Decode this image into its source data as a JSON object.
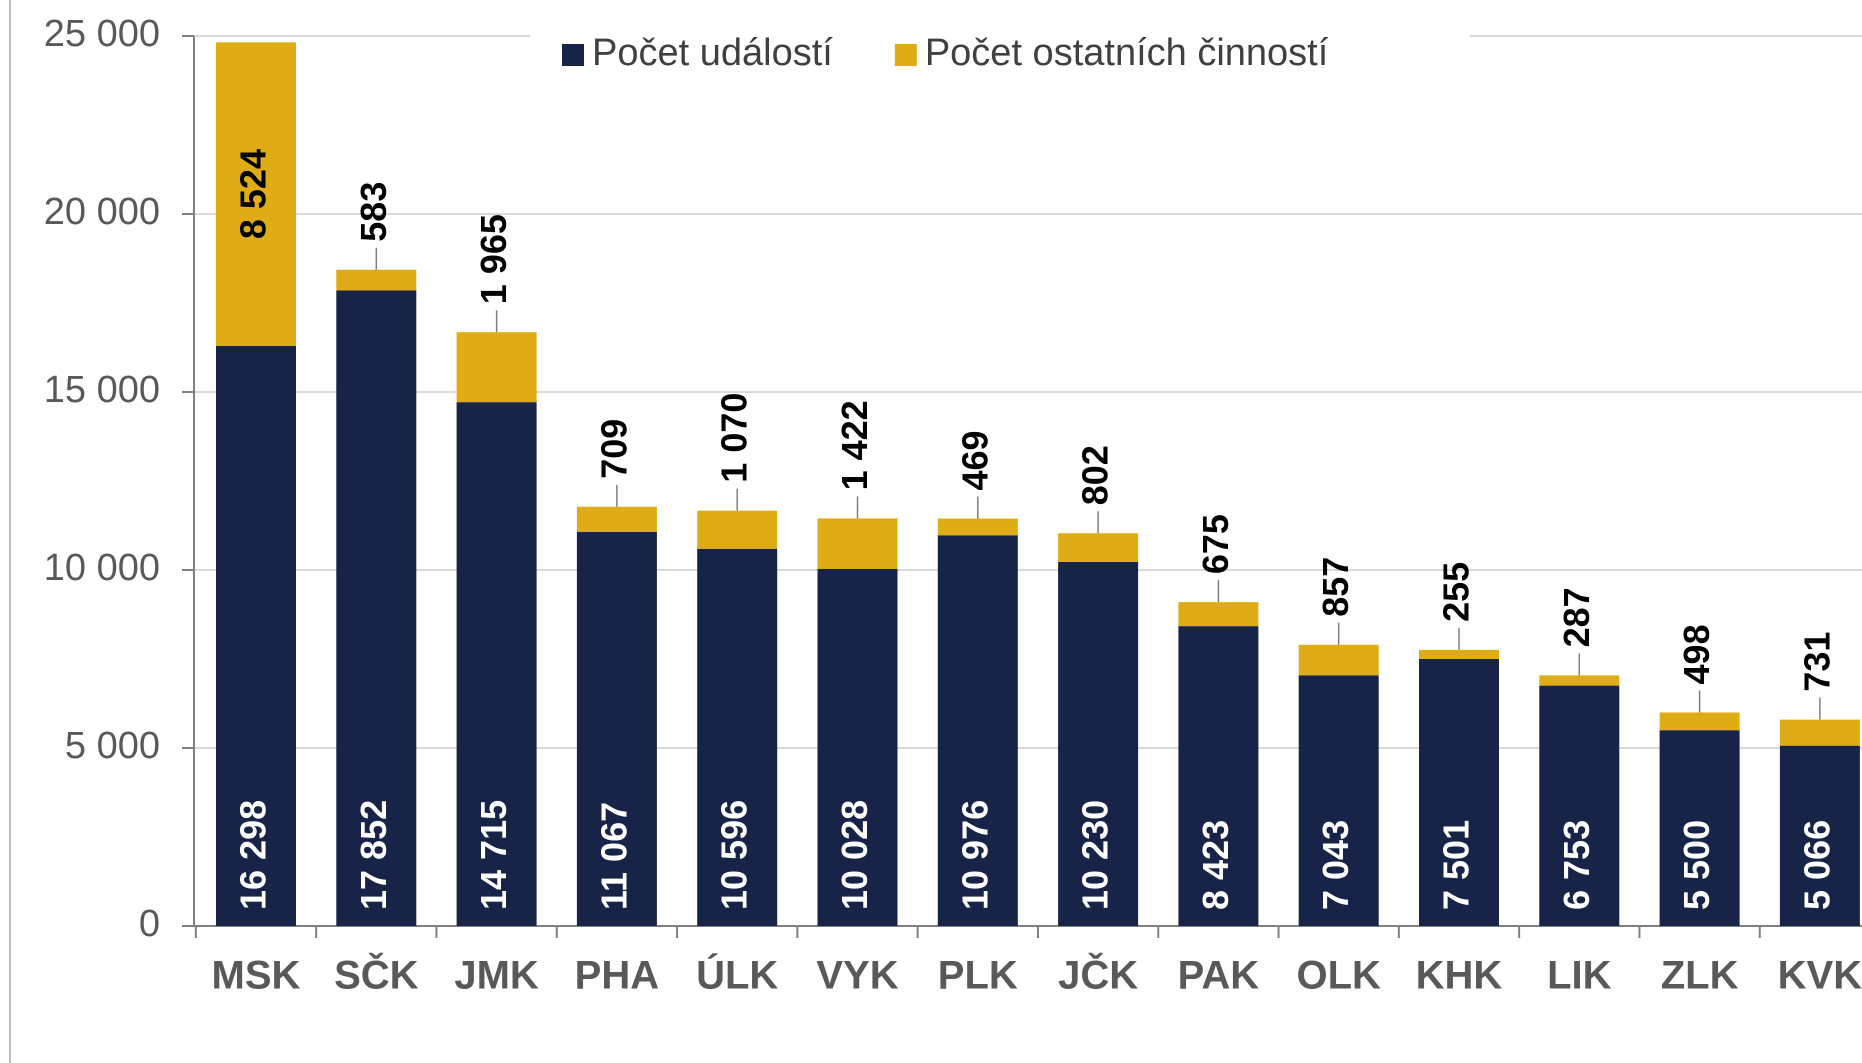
{
  "chart_data": {
    "type": "stacked_bar",
    "categories": [
      "MSK",
      "SČK",
      "JMK",
      "PHA",
      "ÚLK",
      "VYK",
      "PLK",
      "JČK",
      "PAK",
      "OLK",
      "KHK",
      "LIK",
      "ZLK",
      "KVK"
    ],
    "series": [
      {
        "name": "Počet událostí",
        "color": "#172347",
        "values": [
          16298,
          17852,
          14715,
          11067,
          10596,
          10028,
          10976,
          10230,
          8423,
          7043,
          7501,
          6753,
          5500,
          5066
        ],
        "value_labels": [
          "16 298",
          "17 852",
          "14 715",
          "11 067",
          "10 596",
          "10 028",
          "10 976",
          "10 230",
          "8 423",
          "7 043",
          "7 501",
          "6 753",
          "5 500",
          "5 066"
        ]
      },
      {
        "name": "Počet ostatních činností",
        "color": "#e0ac16",
        "values": [
          8524,
          583,
          1965,
          709,
          1070,
          1422,
          469,
          802,
          675,
          857,
          255,
          287,
          498,
          731
        ],
        "value_labels": [
          "8 524",
          "583",
          "1 965",
          "709",
          "1 070",
          "1 422",
          "469",
          "802",
          "675",
          "857",
          "255",
          "287",
          "498",
          "731"
        ]
      }
    ],
    "ylim": [
      0,
      25000
    ],
    "yticks": [
      0,
      {
        "value": 5000,
        "label": "5 000"
      },
      {
        "value": 10000,
        "label": "10 000"
      },
      {
        "value": 15000,
        "label": "15 000"
      },
      {
        "value": 20000,
        "label": "20 000"
      },
      {
        "value": 25000,
        "label": "25 000"
      }
    ],
    "grid": true,
    "legend": "top"
  }
}
